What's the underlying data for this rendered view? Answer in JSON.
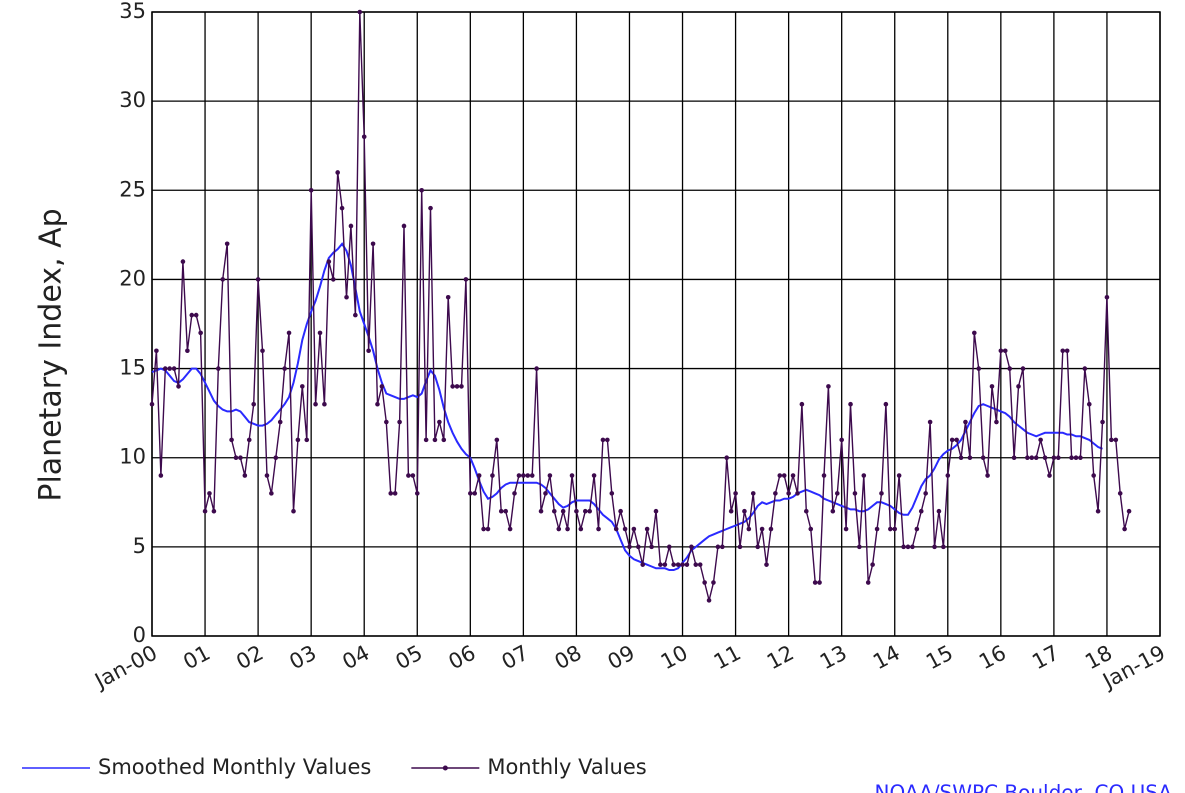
{
  "chart_data": {
    "type": "line",
    "y_label": "Planetary Index, Ap",
    "source": "NOAA/SWPC Boulder, CO USA",
    "xlim": [
      2000,
      2019
    ],
    "xticks": [
      {
        "value": 2000,
        "label": "Jan-00"
      },
      {
        "value": 2001,
        "label": "01"
      },
      {
        "value": 2002,
        "label": "02"
      },
      {
        "value": 2003,
        "label": "03"
      },
      {
        "value": 2004,
        "label": "04"
      },
      {
        "value": 2005,
        "label": "05"
      },
      {
        "value": 2006,
        "label": "06"
      },
      {
        "value": 2007,
        "label": "07"
      },
      {
        "value": 2008,
        "label": "08"
      },
      {
        "value": 2009,
        "label": "09"
      },
      {
        "value": 2010,
        "label": "10"
      },
      {
        "value": 2011,
        "label": "11"
      },
      {
        "value": 2012,
        "label": "12"
      },
      {
        "value": 2013,
        "label": "13"
      },
      {
        "value": 2014,
        "label": "14"
      },
      {
        "value": 2015,
        "label": "15"
      },
      {
        "value": 2016,
        "label": "16"
      },
      {
        "value": 2017,
        "label": "17"
      },
      {
        "value": 2018,
        "label": "18"
      },
      {
        "value": 2019,
        "label": "Jan-19"
      }
    ],
    "ylim": [
      0,
      35
    ],
    "yticks": [
      0,
      5,
      10,
      15,
      20,
      25,
      30,
      35
    ],
    "grid": true,
    "x": [
      2000.0,
      2000.083,
      2000.167,
      2000.25,
      2000.333,
      2000.417,
      2000.5,
      2000.583,
      2000.667,
      2000.75,
      2000.833,
      2000.917,
      2001.0,
      2001.083,
      2001.167,
      2001.25,
      2001.333,
      2001.417,
      2001.5,
      2001.583,
      2001.667,
      2001.75,
      2001.833,
      2001.917,
      2002.0,
      2002.083,
      2002.167,
      2002.25,
      2002.333,
      2002.417,
      2002.5,
      2002.583,
      2002.667,
      2002.75,
      2002.833,
      2002.917,
      2003.0,
      2003.083,
      2003.167,
      2003.25,
      2003.333,
      2003.417,
      2003.5,
      2003.583,
      2003.667,
      2003.75,
      2003.833,
      2003.917,
      2004.0,
      2004.083,
      2004.167,
      2004.25,
      2004.333,
      2004.417,
      2004.5,
      2004.583,
      2004.667,
      2004.75,
      2004.833,
      2004.917,
      2005.0,
      2005.083,
      2005.167,
      2005.25,
      2005.333,
      2005.417,
      2005.5,
      2005.583,
      2005.667,
      2005.75,
      2005.833,
      2005.917,
      2006.0,
      2006.083,
      2006.167,
      2006.25,
      2006.333,
      2006.417,
      2006.5,
      2006.583,
      2006.667,
      2006.75,
      2006.833,
      2006.917,
      2007.0,
      2007.083,
      2007.167,
      2007.25,
      2007.333,
      2007.417,
      2007.5,
      2007.583,
      2007.667,
      2007.75,
      2007.833,
      2007.917,
      2008.0,
      2008.083,
      2008.167,
      2008.25,
      2008.333,
      2008.417,
      2008.5,
      2008.583,
      2008.667,
      2008.75,
      2008.833,
      2008.917,
      2009.0,
      2009.083,
      2009.167,
      2009.25,
      2009.333,
      2009.417,
      2009.5,
      2009.583,
      2009.667,
      2009.75,
      2009.833,
      2009.917,
      2010.0,
      2010.083,
      2010.167,
      2010.25,
      2010.333,
      2010.417,
      2010.5,
      2010.583,
      2010.667,
      2010.75,
      2010.833,
      2010.917,
      2011.0,
      2011.083,
      2011.167,
      2011.25,
      2011.333,
      2011.417,
      2011.5,
      2011.583,
      2011.667,
      2011.75,
      2011.833,
      2011.917,
      2012.0,
      2012.083,
      2012.167,
      2012.25,
      2012.333,
      2012.417,
      2012.5,
      2012.583,
      2012.667,
      2012.75,
      2012.833,
      2012.917,
      2013.0,
      2013.083,
      2013.167,
      2013.25,
      2013.333,
      2013.417,
      2013.5,
      2013.583,
      2013.667,
      2013.75,
      2013.833,
      2013.917,
      2014.0,
      2014.083,
      2014.167,
      2014.25,
      2014.333,
      2014.417,
      2014.5,
      2014.583,
      2014.667,
      2014.75,
      2014.833,
      2014.917,
      2015.0,
      2015.083,
      2015.167,
      2015.25,
      2015.333,
      2015.417,
      2015.5,
      2015.583,
      2015.667,
      2015.75,
      2015.833,
      2015.917,
      2016.0,
      2016.083,
      2016.167,
      2016.25,
      2016.333,
      2016.417,
      2016.5,
      2016.583,
      2016.667,
      2016.75,
      2016.833,
      2016.917,
      2017.0,
      2017.083,
      2017.167,
      2017.25,
      2017.333,
      2017.417,
      2017.5,
      2017.583,
      2017.667,
      2017.75,
      2017.833,
      2017.917,
      2018.0,
      2018.083,
      2018.167,
      2018.25,
      2018.333,
      2018.417
    ],
    "series": [
      {
        "name": "Smoothed Monthly Values",
        "color": "#2a2aff",
        "markers": false,
        "values": [
          14.8,
          14.9,
          15.0,
          14.9,
          14.6,
          14.3,
          14.2,
          14.4,
          14.7,
          15.0,
          15.0,
          14.7,
          14.2,
          13.7,
          13.2,
          12.9,
          12.7,
          12.6,
          12.6,
          12.7,
          12.6,
          12.3,
          12.0,
          11.9,
          11.8,
          11.8,
          11.9,
          12.1,
          12.4,
          12.7,
          13.0,
          13.4,
          14.2,
          15.3,
          16.6,
          17.5,
          18.2,
          18.8,
          19.6,
          20.5,
          21.2,
          21.5,
          21.7,
          22.0,
          21.6,
          20.8,
          19.5,
          18.2,
          17.5,
          16.8,
          16.0,
          15.0,
          14.2,
          13.6,
          13.5,
          13.4,
          13.3,
          13.3,
          13.4,
          13.5,
          13.4,
          13.6,
          14.3,
          14.9,
          14.6,
          13.8,
          12.8,
          12.0,
          11.4,
          10.9,
          10.5,
          10.2,
          10.0,
          9.4,
          8.7,
          8.1,
          7.7,
          7.8,
          8.0,
          8.3,
          8.5,
          8.6,
          8.6,
          8.6,
          8.6,
          8.6,
          8.6,
          8.6,
          8.5,
          8.3,
          8.0,
          7.7,
          7.4,
          7.2,
          7.3,
          7.5,
          7.6,
          7.6,
          7.6,
          7.6,
          7.4,
          7.1,
          6.8,
          6.6,
          6.4,
          6.0,
          5.4,
          4.8,
          4.5,
          4.3,
          4.2,
          4.1,
          4.0,
          3.9,
          3.8,
          3.8,
          3.8,
          3.7,
          3.7,
          3.8,
          4.1,
          4.4,
          4.8,
          5.0,
          5.2,
          5.4,
          5.6,
          5.7,
          5.8,
          5.9,
          6.0,
          6.1,
          6.2,
          6.3,
          6.4,
          6.6,
          6.9,
          7.3,
          7.5,
          7.4,
          7.5,
          7.6,
          7.6,
          7.7,
          7.7,
          7.8,
          8.0,
          8.1,
          8.2,
          8.1,
          8.0,
          7.9,
          7.7,
          7.6,
          7.5,
          7.4,
          7.3,
          7.2,
          7.1,
          7.1,
          7.0,
          7.0,
          7.1,
          7.3,
          7.5,
          7.5,
          7.4,
          7.3,
          7.1,
          6.9,
          6.8,
          6.8,
          7.2,
          7.8,
          8.4,
          8.8,
          9.0,
          9.4,
          9.9,
          10.2,
          10.4,
          10.5,
          10.7,
          11.0,
          11.5,
          12.0,
          12.5,
          12.9,
          13.0,
          12.9,
          12.8,
          12.7,
          12.6,
          12.5,
          12.3,
          12.0,
          11.8,
          11.6,
          11.4,
          11.3,
          11.2,
          11.3,
          11.4,
          11.4,
          11.4,
          11.4,
          11.4,
          11.3,
          11.3,
          11.2,
          11.2,
          11.1,
          11.0,
          10.8,
          10.6,
          10.5,
          null,
          null,
          null,
          null,
          null,
          null
        ]
      },
      {
        "name": "Monthly Values",
        "color": "#3d0a4d",
        "markers": true,
        "values": [
          13,
          16,
          9,
          15,
          15,
          15,
          14,
          21,
          16,
          18,
          18,
          17,
          7,
          8,
          7,
          15,
          20,
          22,
          11,
          10,
          10,
          9,
          11,
          13,
          20,
          16,
          9,
          8,
          10,
          12,
          15,
          17,
          7,
          11,
          14,
          11,
          25,
          13,
          17,
          13,
          21,
          20,
          26,
          24,
          19,
          23,
          18,
          35,
          28,
          16,
          22,
          13,
          14,
          12,
          8,
          8,
          12,
          23,
          9,
          9,
          8,
          25,
          11,
          24,
          11,
          12,
          11,
          19,
          14,
          14,
          14,
          20,
          8,
          8,
          9,
          6,
          6,
          9,
          11,
          7,
          7,
          6,
          8,
          9,
          9,
          9,
          9,
          15,
          7,
          8,
          9,
          7,
          6,
          7,
          6,
          9,
          7,
          6,
          7,
          7,
          9,
          6,
          11,
          11,
          8,
          6,
          7,
          6,
          5,
          6,
          5,
          4,
          6,
          5,
          7,
          4,
          4,
          5,
          4,
          4,
          4,
          4,
          5,
          4,
          4,
          3,
          2,
          3,
          5,
          5,
          10,
          7,
          8,
          5,
          7,
          6,
          8,
          5,
          6,
          4,
          6,
          8,
          9,
          9,
          8,
          9,
          8,
          13,
          7,
          6,
          3,
          3,
          9,
          14,
          7,
          8,
          11,
          6,
          13,
          8,
          5,
          9,
          3,
          4,
          6,
          8,
          13,
          6,
          6,
          9,
          5,
          5,
          5,
          6,
          7,
          8,
          12,
          5,
          7,
          5,
          9,
          11,
          11,
          10,
          12,
          10,
          17,
          15,
          10,
          9,
          14,
          12,
          16,
          16,
          15,
          10,
          14,
          15,
          10,
          10,
          10,
          11,
          10,
          9,
          10,
          10,
          16,
          16,
          10,
          10,
          10,
          15,
          13,
          9,
          7,
          12,
          19,
          11,
          11,
          8,
          6,
          7
        ]
      }
    ]
  }
}
